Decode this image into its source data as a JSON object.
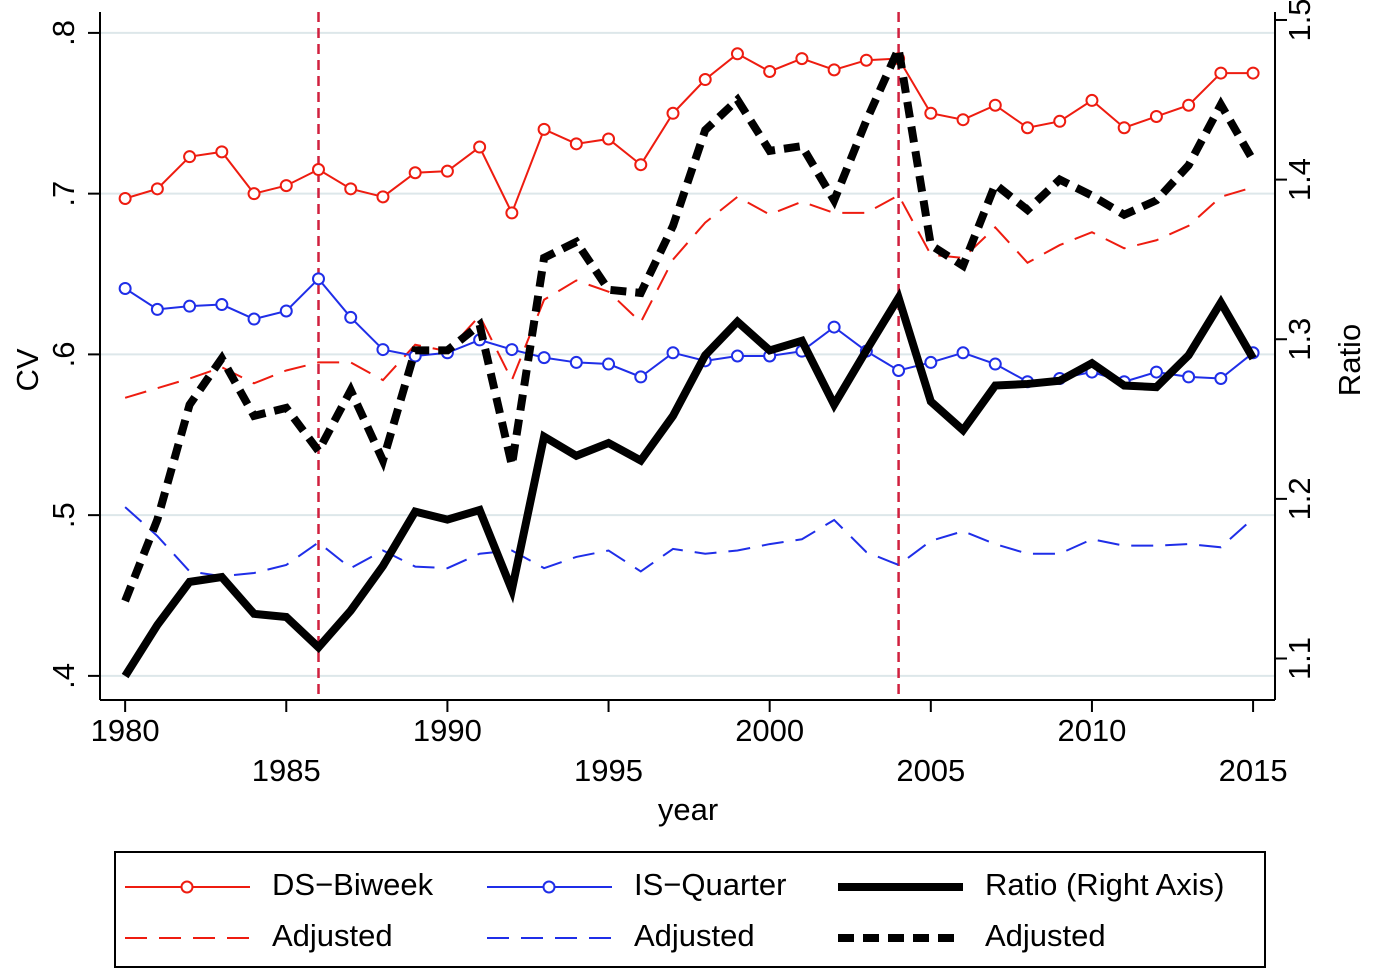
{
  "chart_data": {
    "type": "line",
    "x_label": "year",
    "y_label": "CV",
    "y2_label": "Ratio",
    "x": [
      1980,
      1981,
      1982,
      1983,
      1984,
      1985,
      1986,
      1987,
      1988,
      1989,
      1990,
      1991,
      1992,
      1993,
      1994,
      1995,
      1996,
      1997,
      1998,
      1999,
      2000,
      2001,
      2002,
      2003,
      2004,
      2005,
      2006,
      2007,
      2008,
      2009,
      2010,
      2011,
      2012,
      2013,
      2014,
      2015
    ],
    "xlim": [
      1979.22,
      2015.68
    ],
    "xticks": [
      1980,
      1985,
      1990,
      1995,
      2000,
      2005,
      2010,
      2015
    ],
    "ylim": [
      0.385,
      0.813
    ],
    "yticks": [
      {
        "value": 0.4,
        "label": ".4"
      },
      {
        "value": 0.5,
        "label": ".5"
      },
      {
        "value": 0.6,
        "label": ".6"
      },
      {
        "value": 0.7,
        "label": ".7"
      },
      {
        "value": 0.8,
        "label": ".8"
      }
    ],
    "y2lim": [
      1.074,
      1.505
    ],
    "y2ticks": [
      1.1,
      1.2,
      1.3,
      1.4,
      1.5
    ],
    "grid": true,
    "vlines": [
      1986,
      2004
    ],
    "vline_color": "#d0213f",
    "series": [
      {
        "name": "DS−Biweek",
        "color": "#ee1c10",
        "style": "solid",
        "marker": "circle",
        "values": [
          0.697,
          0.703,
          0.723,
          0.726,
          0.7,
          0.705,
          0.715,
          0.703,
          0.698,
          0.713,
          0.714,
          0.729,
          0.688,
          0.74,
          0.731,
          0.734,
          0.718,
          0.75,
          0.771,
          0.787,
          0.776,
          0.784,
          0.777,
          0.783,
          0.784,
          0.75,
          0.746,
          0.755,
          0.741,
          0.745,
          0.758,
          0.741,
          0.748,
          0.755,
          0.775,
          0.775
        ]
      },
      {
        "name": "Adjusted",
        "color": "#ee1c10",
        "style": "dashed",
        "values": [
          0.573,
          0.579,
          0.585,
          0.592,
          0.582,
          0.59,
          0.595,
          0.595,
          0.584,
          0.606,
          0.602,
          0.624,
          0.584,
          0.634,
          0.646,
          0.639,
          0.62,
          0.659,
          0.682,
          0.698,
          0.687,
          0.695,
          0.688,
          0.688,
          0.699,
          0.662,
          0.66,
          0.679,
          0.657,
          0.668,
          0.676,
          0.666,
          0.671,
          0.68,
          0.698,
          0.704
        ]
      },
      {
        "name": "IS−Quarter",
        "color": "#1f2ee8",
        "style": "solid",
        "marker": "circle",
        "values": [
          0.641,
          0.628,
          0.63,
          0.631,
          0.622,
          0.627,
          0.647,
          0.623,
          0.603,
          0.599,
          0.601,
          0.609,
          0.603,
          0.598,
          0.595,
          0.594,
          0.586,
          0.601,
          0.596,
          0.599,
          0.599,
          0.602,
          0.617,
          0.602,
          0.59,
          0.595,
          0.601,
          0.594,
          0.583,
          0.585,
          0.589,
          0.583,
          0.589,
          0.586,
          0.585,
          0.601
        ]
      },
      {
        "name": "Adjusted",
        "color": "#1f2ee8",
        "style": "dashed",
        "values": [
          0.505,
          0.487,
          0.465,
          0.462,
          0.464,
          0.469,
          0.483,
          0.467,
          0.478,
          0.468,
          0.467,
          0.476,
          0.478,
          0.467,
          0.474,
          0.478,
          0.465,
          0.479,
          0.476,
          0.478,
          0.482,
          0.485,
          0.497,
          0.477,
          0.469,
          0.484,
          0.49,
          0.482,
          0.476,
          0.476,
          0.485,
          0.481,
          0.481,
          0.482,
          0.48,
          0.498
        ]
      },
      {
        "name": "Ratio (Right Axis)",
        "color": "#000000",
        "style": "solid",
        "axis": "y2",
        "values": [
          1.089,
          1.121,
          1.148,
          1.151,
          1.128,
          1.126,
          1.107,
          1.13,
          1.158,
          1.192,
          1.187,
          1.193,
          1.143,
          1.239,
          1.227,
          1.235,
          1.224,
          1.252,
          1.29,
          1.311,
          1.293,
          1.299,
          1.259,
          1.293,
          1.326,
          1.261,
          1.243,
          1.271,
          1.272,
          1.274,
          1.285,
          1.271,
          1.27,
          1.29,
          1.323,
          1.288
        ]
      },
      {
        "name": "Adjusted",
        "color": "#000000",
        "style": "dashed",
        "axis": "y2",
        "values": [
          1.136,
          1.187,
          1.259,
          1.288,
          1.252,
          1.257,
          1.23,
          1.268,
          1.224,
          1.293,
          1.293,
          1.309,
          1.221,
          1.351,
          1.361,
          1.331,
          1.329,
          1.371,
          1.431,
          1.45,
          1.418,
          1.421,
          1.387,
          1.437,
          1.482,
          1.359,
          1.346,
          1.397,
          1.381,
          1.4,
          1.39,
          1.378,
          1.387,
          1.409,
          1.447,
          1.412
        ]
      }
    ]
  }
}
